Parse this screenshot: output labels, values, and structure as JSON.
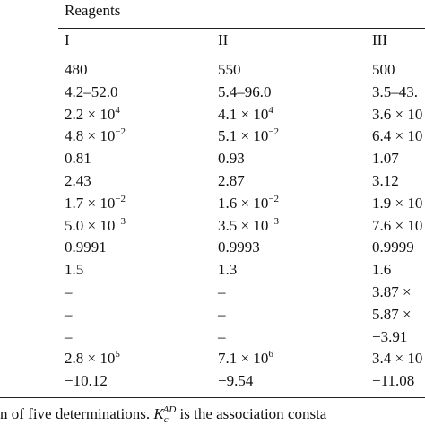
{
  "table": {
    "group_header": "Reagents",
    "columns": [
      "I",
      "II",
      "III"
    ],
    "rows": [
      [
        "480",
        "550",
        "500"
      ],
      [
        "4.2–52.0",
        "5.4–96.0",
        "3.5–43."
      ],
      [
        {
          "base": "2.2 × 10",
          "sup": "4"
        },
        {
          "base": "4.1 × 10",
          "sup": "4"
        },
        {
          "base": "3.6 × 10",
          "sup": ""
        }
      ],
      [
        {
          "base": "4.8 × 10",
          "sup": "−2"
        },
        {
          "base": "5.1 × 10",
          "sup": "−2"
        },
        {
          "base": "6.4 × 10",
          "sup": ""
        }
      ],
      [
        "0.81",
        "0.93",
        "1.07"
      ],
      [
        "2.43",
        "2.87",
        "3.12"
      ],
      [
        {
          "base": "1.7 × 10",
          "sup": "−2"
        },
        {
          "base": "1.6 × 10",
          "sup": "−2"
        },
        {
          "base": "1.9 × 10",
          "sup": ""
        }
      ],
      [
        {
          "base": "5.0 × 10",
          "sup": "−3"
        },
        {
          "base": "3.5 × 10",
          "sup": "−3"
        },
        {
          "base": "7.6 × 10",
          "sup": ""
        }
      ],
      [
        "0.9991",
        "0.9993",
        "0.9999"
      ],
      [
        "1.5",
        "1.3",
        "1.6"
      ],
      [
        "–",
        "–",
        "3.87 ×"
      ],
      [
        "–",
        "–",
        "5.87 ×"
      ],
      [
        "–",
        "–",
        "−3.91"
      ],
      [
        {
          "base": "2.8 × 10",
          "sup": "5"
        },
        {
          "base": "7.1 × 10",
          "sup": "6"
        },
        {
          "base": "3.4 × 10",
          "sup": ""
        }
      ],
      [
        "−10.12",
        "−9.54",
        "−11.08"
      ]
    ]
  },
  "footnote": {
    "before": "n of five determinations.",
    "symbol": "K",
    "sub": "c",
    "sup": "AD",
    "after": "is the association consta"
  }
}
